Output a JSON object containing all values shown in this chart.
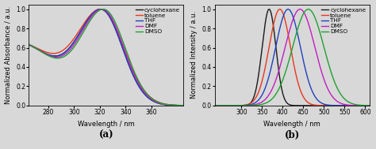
{
  "solvents": [
    "cyclohexane",
    "toluene",
    "THF",
    "DMF",
    "DMSO"
  ],
  "colors": [
    "#1a1a1a",
    "#e83820",
    "#2040c0",
    "#c020c0",
    "#20a030"
  ],
  "abs_xlim": [
    265,
    385
  ],
  "abs_xticks": [
    280,
    300,
    320,
    340,
    360
  ],
  "abs_ylim": [
    0.0,
    1.05
  ],
  "abs_yticks": [
    0.0,
    0.2,
    0.4,
    0.6,
    0.8,
    1.0
  ],
  "em_xlim": [
    235,
    610
  ],
  "em_xticks": [
    300,
    350,
    400,
    450,
    500,
    550,
    600
  ],
  "em_ylim": [
    0.0,
    1.05
  ],
  "em_yticks": [
    0.0,
    0.2,
    0.4,
    0.6,
    0.8,
    1.0
  ],
  "abs_peaks": [
    322,
    322,
    322,
    322,
    322
  ],
  "abs_sigma_left": [
    18,
    19,
    18,
    18,
    18
  ],
  "abs_sigma_right": [
    16,
    17,
    16,
    16,
    16
  ],
  "abs_offsets": [
    0,
    0,
    0,
    1,
    2
  ],
  "em_peaks": [
    372,
    393,
    413,
    442,
    462
  ],
  "em_sigmas": [
    22,
    26,
    30,
    36,
    38
  ],
  "em_cyc_peak1": 358,
  "em_cyc_peak2": 372,
  "em_cyc_sigma": 15,
  "em_cyc_ratio": 0.62,
  "label_a": "(a)",
  "label_b": "(b)",
  "xlabel": "Wavelength / nm",
  "ylabel_a": "Normalized Absorbance / a.u.",
  "ylabel_b": "Normalized Intensity / a.u.",
  "linewidth": 1.0,
  "legend_fontsize": 5.2,
  "tick_fontsize": 5.5,
  "axis_label_fontsize": 6.0,
  "ab_label_fontsize": 8.5,
  "background_color": "#d8d8d8"
}
